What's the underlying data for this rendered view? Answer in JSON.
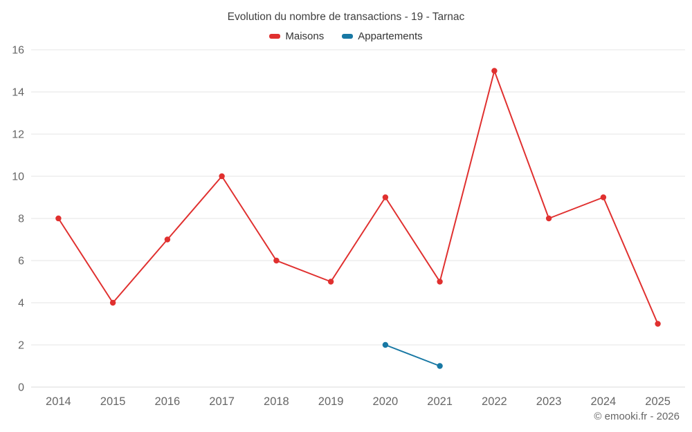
{
  "header": {
    "title": "Evolution du nombre de transactions - 19 - Tarnac"
  },
  "footer": {
    "credit": "© emooki.fr - 2026"
  },
  "colors": {
    "maisons": "#e0302f",
    "appartements": "#1878a4",
    "gridline": "#e6e6e6",
    "axis_text": "#666666",
    "title_text": "#3f3f3f"
  },
  "chart_data": {
    "type": "line",
    "title": "Evolution du nombre de transactions - 19 - Tarnac",
    "categories": [
      "2014",
      "2015",
      "2016",
      "2017",
      "2018",
      "2019",
      "2020",
      "2021",
      "2022",
      "2023",
      "2024",
      "2025"
    ],
    "series": [
      {
        "name": "Maisons",
        "color": "#e0302f",
        "values": [
          8,
          4,
          7,
          10,
          6,
          5,
          9,
          5,
          15,
          8,
          9,
          3
        ]
      },
      {
        "name": "Appartements",
        "color": "#1878a4",
        "values": [
          null,
          null,
          null,
          null,
          null,
          null,
          2,
          1,
          null,
          null,
          null,
          null
        ]
      }
    ],
    "xlabel": "",
    "ylabel": "",
    "ylim": [
      0,
      16
    ],
    "ytick_step": 2,
    "grid": "horizontal",
    "legend_position": "top"
  }
}
